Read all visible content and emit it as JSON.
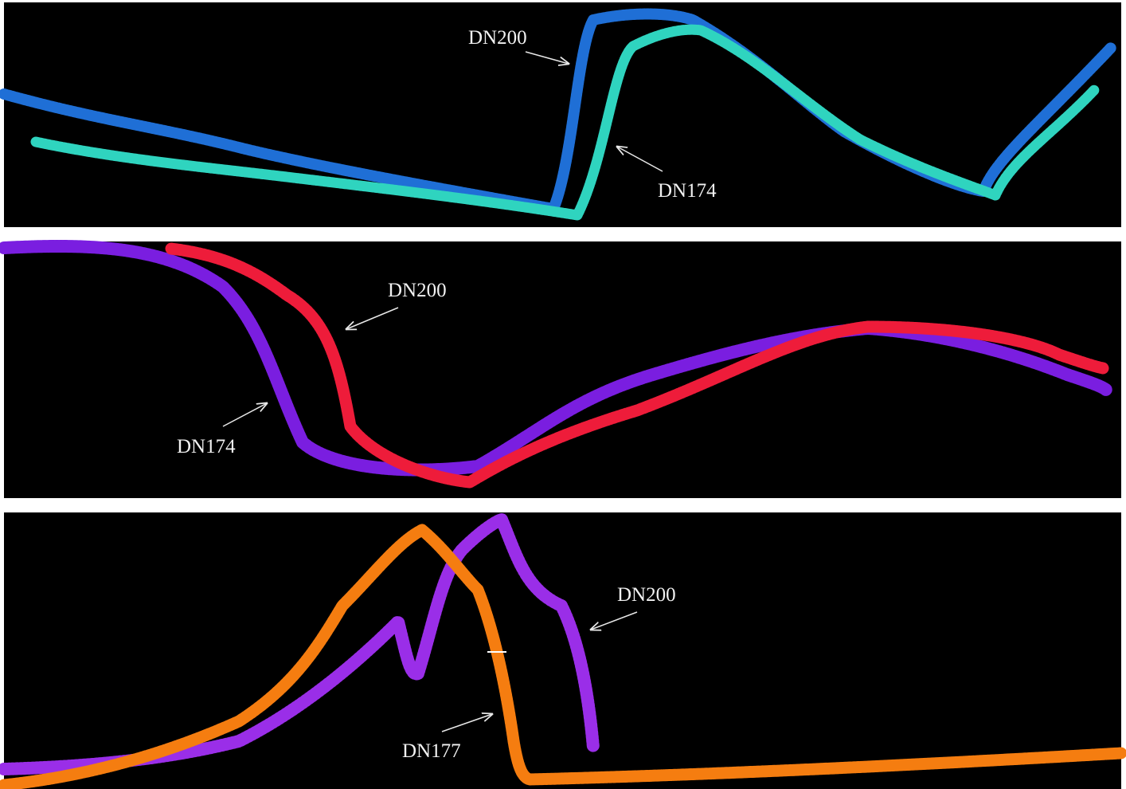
{
  "panels": [
    {
      "labels": [
        {
          "text": "DN200"
        },
        {
          "text": "DN174"
        }
      ]
    },
    {
      "labels": [
        {
          "text": "DN200"
        },
        {
          "text": "DN174"
        }
      ]
    },
    {
      "labels": [
        {
          "text": "DN200"
        },
        {
          "text": "DN177"
        }
      ]
    }
  ]
}
